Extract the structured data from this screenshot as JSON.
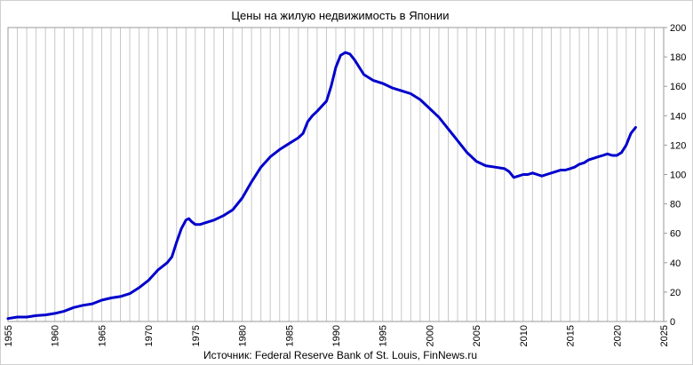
{
  "chart_data": {
    "type": "line",
    "title": "Цены на жилую недвижимость в Японии",
    "source": "Источник: Federal Reserve Bank of St. Louis, FinNews.ru",
    "xlabel": "",
    "ylabel": "",
    "xlim": [
      1955,
      2025
    ],
    "ylim": [
      0,
      200
    ],
    "x_ticks": [
      "1955",
      "1960",
      "1965",
      "1970",
      "1975",
      "1980",
      "1985",
      "1990",
      "1995",
      "2000",
      "2005",
      "2010",
      "2015",
      "2020",
      "2025"
    ],
    "y_ticks": [
      "0",
      "20",
      "40",
      "60",
      "80",
      "100",
      "120",
      "140",
      "160",
      "180",
      "200"
    ],
    "grid": "vertical-yearly",
    "legend": "none",
    "line_color": "#0000cc",
    "series": [
      {
        "x": [
          1955.0,
          1956.0,
          1957.0,
          1958.0,
          1959.0,
          1960.0,
          1961.0,
          1962.0,
          1963.0,
          1964.0,
          1965.0,
          1966.0,
          1967.0,
          1968.0,
          1969.0,
          1970.0,
          1971.0,
          1972.0,
          1972.5,
          1973.0,
          1973.5,
          1974.0,
          1974.3,
          1974.6,
          1975.0,
          1975.5,
          1976.0,
          1977.0,
          1978.0,
          1979.0,
          1980.0,
          1981.0,
          1982.0,
          1983.0,
          1984.0,
          1985.0,
          1985.5,
          1986.0,
          1986.5,
          1987.0,
          1987.5,
          1988.0,
          1989.0,
          1989.5,
          1990.0,
          1990.5,
          1991.0,
          1991.5,
          1992.0,
          1993.0,
          1994.0,
          1995.0,
          1996.0,
          1997.0,
          1998.0,
          1999.0,
          2000.0,
          2001.0,
          2002.0,
          2003.0,
          2004.0,
          2005.0,
          2006.0,
          2007.0,
          2008.0,
          2008.5,
          2009.0,
          2009.5,
          2010.0,
          2010.5,
          2011.0,
          2011.5,
          2012.0,
          2012.5,
          2013.0,
          2013.5,
          2014.0,
          2014.5,
          2015.0,
          2015.5,
          2016.0,
          2016.5,
          2017.0,
          2017.5,
          2018.0,
          2018.5,
          2019.0,
          2019.5,
          2020.0,
          2020.5,
          2021.0,
          2021.5,
          2022.0
        ],
        "values": [
          2,
          3,
          3,
          4,
          4.5,
          5.5,
          7,
          9.5,
          11,
          12,
          14.5,
          16,
          17,
          19,
          23,
          28,
          35,
          40,
          44,
          54,
          63,
          69,
          70,
          68,
          66,
          66,
          67,
          69,
          72,
          76,
          84,
          95,
          105,
          112,
          117,
          121,
          123,
          125,
          128,
          136,
          140,
          143,
          150,
          160,
          173,
          181,
          183,
          182,
          178,
          168,
          164,
          162,
          159,
          157,
          155,
          151,
          145,
          139,
          131,
          123,
          115,
          109,
          106,
          105,
          104,
          102,
          98,
          99,
          100,
          100,
          101,
          100,
          99,
          100,
          101,
          102,
          103,
          103,
          104,
          105,
          107,
          108,
          110,
          111,
          112,
          113,
          114,
          113,
          113,
          115,
          120,
          128,
          132
        ]
      }
    ]
  }
}
